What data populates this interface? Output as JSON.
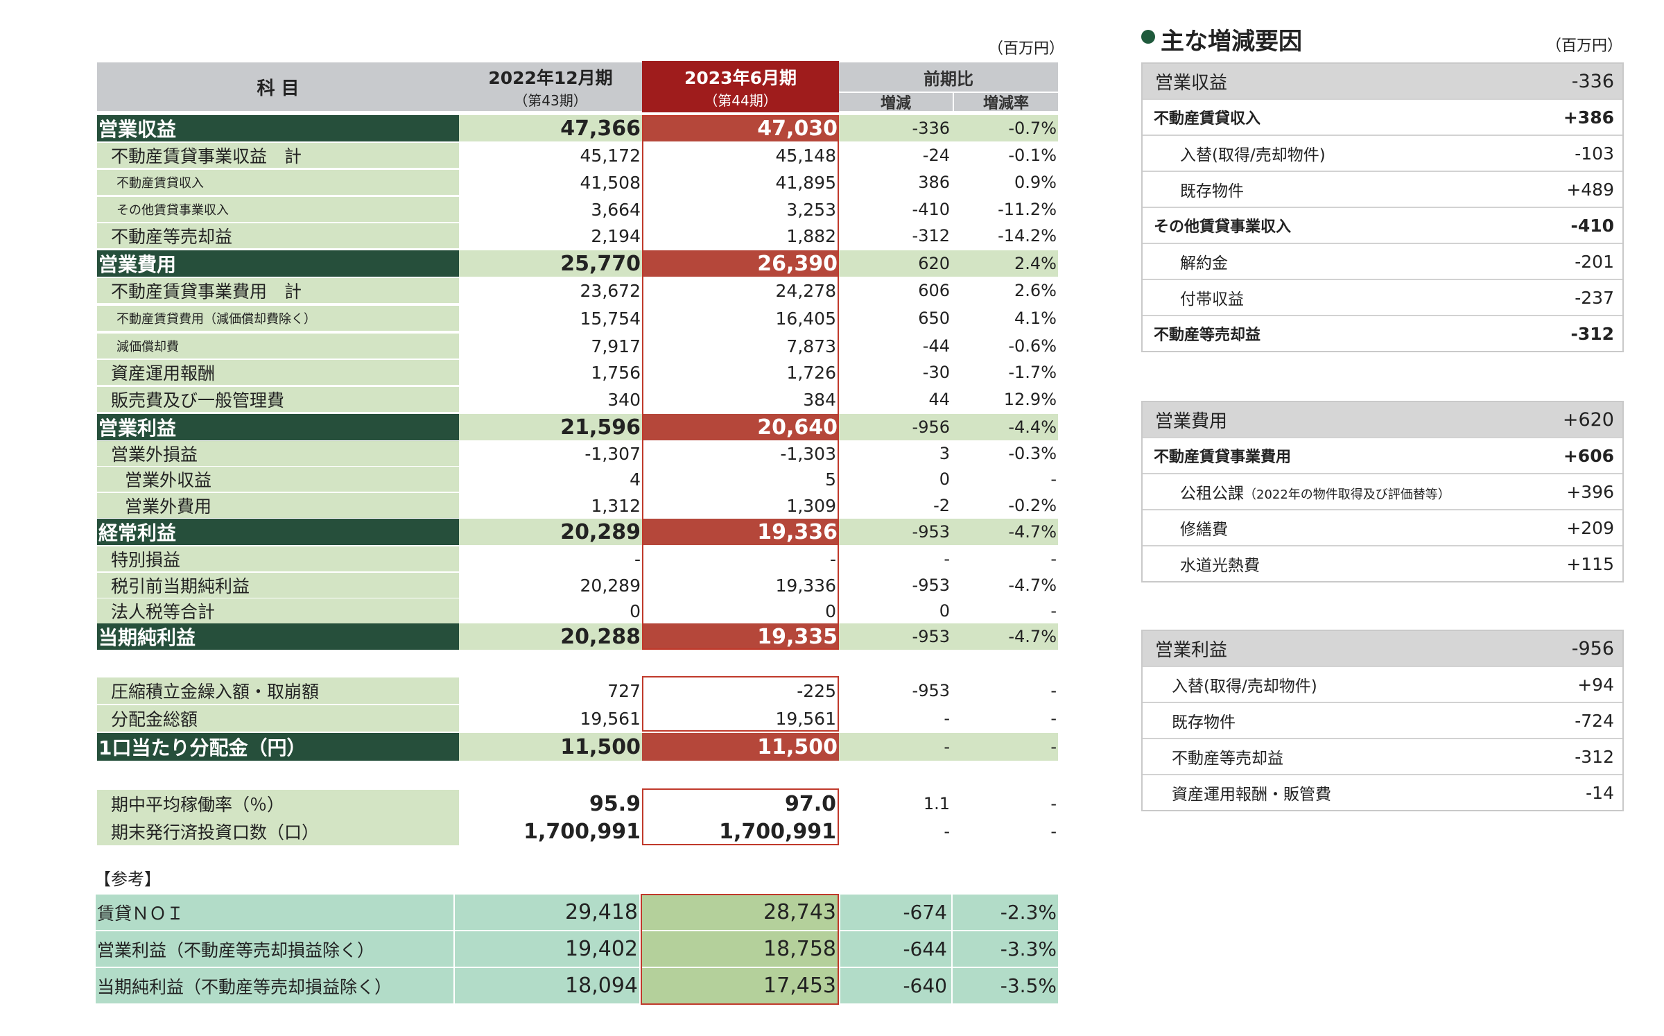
{
  "unit_label": "（百万円）",
  "header": {
    "item_label": "科 目",
    "period1_title": "2022年12月期",
    "period1_sub": "（第43期）",
    "period2_title": "2023年6月期",
    "period2_sub": "（第44期）",
    "compare_title": "前期比",
    "diff_label": "増減",
    "rate_label": "増減率"
  },
  "rows": [
    {
      "label": "営業収益",
      "p1": "47,366",
      "p2": "47,030",
      "diff": "-336",
      "rate": "-0.7%",
      "style": "major"
    },
    {
      "label": "不動産賃貸事業収益　計",
      "p1": "45,172",
      "p2": "45,148",
      "diff": "-24",
      "rate": "-0.1%",
      "style": "sub"
    },
    {
      "label": "不動産賃貸収入",
      "p1": "41,508",
      "p2": "41,895",
      "diff": "386",
      "rate": "0.9%",
      "style": "small"
    },
    {
      "label": "その他賃貸事業収入",
      "p1": "3,664",
      "p2": "3,253",
      "diff": "-410",
      "rate": "-11.2%",
      "style": "small"
    },
    {
      "label": "不動産等売却益",
      "p1": "2,194",
      "p2": "1,882",
      "diff": "-312",
      "rate": "-14.2%",
      "style": "sub"
    },
    {
      "label": "営業費用",
      "p1": "25,770",
      "p2": "26,390",
      "diff": "620",
      "rate": "2.4%",
      "style": "major"
    },
    {
      "label": "不動産賃貸事業費用　計",
      "p1": "23,672",
      "p2": "24,278",
      "diff": "606",
      "rate": "2.6%",
      "style": "sub"
    },
    {
      "label": "不動産賃貸費用（減価償却費除く）",
      "p1": "15,754",
      "p2": "16,405",
      "diff": "650",
      "rate": "4.1%",
      "style": "small"
    },
    {
      "label": "減価償却費",
      "p1": "7,917",
      "p2": "7,873",
      "diff": "-44",
      "rate": "-0.6%",
      "style": "small"
    },
    {
      "label": "資産運用報酬",
      "p1": "1,756",
      "p2": "1,726",
      "diff": "-30",
      "rate": "-1.7%",
      "style": "sub"
    },
    {
      "label": "販売費及び一般管理費",
      "p1": "340",
      "p2": "384",
      "diff": "44",
      "rate": "12.9%",
      "style": "sub"
    },
    {
      "label": "営業利益",
      "p1": "21,596",
      "p2": "20,640",
      "diff": "-956",
      "rate": "-4.4%",
      "style": "major"
    },
    {
      "label": "営業外損益",
      "p1": "-1,307",
      "p2": "-1,303",
      "diff": "3",
      "rate": "-0.3%",
      "style": "sub"
    },
    {
      "label": "営業外収益",
      "p1": "4",
      "p2": "5",
      "diff": "0",
      "rate": "-",
      "style": "sub2"
    },
    {
      "label": "営業外費用",
      "p1": "1,312",
      "p2": "1,309",
      "diff": "-2",
      "rate": "-0.2%",
      "style": "sub2"
    },
    {
      "label": "経常利益",
      "p1": "20,289",
      "p2": "19,336",
      "diff": "-953",
      "rate": "-4.7%",
      "style": "major"
    },
    {
      "label": "特別損益",
      "p1": "-",
      "p2": "-",
      "diff": "-",
      "rate": "-",
      "style": "sub"
    },
    {
      "label": "税引前当期純利益",
      "p1": "20,289",
      "p2": "19,336",
      "diff": "-953",
      "rate": "-4.7%",
      "style": "sub"
    },
    {
      "label": "法人税等合計",
      "p1": "0",
      "p2": "0",
      "diff": "0",
      "rate": "-",
      "style": "sub"
    },
    {
      "label": "当期純利益",
      "p1": "20,288",
      "p2": "19,335",
      "diff": "-953",
      "rate": "-4.7%",
      "style": "major"
    }
  ],
  "dist_rows": [
    {
      "label": "圧縮積立金繰入額・取崩額",
      "p1": "727",
      "p2": "-225",
      "diff": "-953",
      "rate": "-",
      "style": "sub"
    },
    {
      "label": "分配金総額",
      "p1": "19,561",
      "p2": "19,561",
      "diff": "-",
      "rate": "-",
      "style": "sub"
    },
    {
      "label": "1口当たり分配金（円）",
      "p1": "11,500",
      "p2": "11,500",
      "diff": "-",
      "rate": "-",
      "style": "major"
    }
  ],
  "occ_rows": [
    {
      "label": "期中平均稼働率（％）",
      "p1": "95.9",
      "p2": "97.0",
      "diff": "1.1",
      "rate": "-"
    },
    {
      "label": "期末発行済投資口数（口）",
      "p1": "1,700,991",
      "p2": "1,700,991",
      "diff": "-",
      "rate": "-"
    }
  ],
  "reference_label": "【参考】",
  "ref_rows": [
    {
      "label": "賃貸ＮＯＩ",
      "p1": "29,418",
      "p2": "28,743",
      "diff": "-674",
      "rate": "-2.3%"
    },
    {
      "label": "営業利益（不動産等売却損益除く）",
      "p1": "19,402",
      "p2": "18,758",
      "diff": "-644",
      "rate": "-3.3%"
    },
    {
      "label": "当期純利益（不動産等売却損益除く）",
      "p1": "18,094",
      "p2": "17,453",
      "diff": "-640",
      "rate": "-3.5%"
    }
  ],
  "side": {
    "title": "主な増減要因",
    "unit_label": "（百万円）",
    "bullet_color": "#1f5a3c",
    "boxes": [
      {
        "head_label": "営業収益",
        "head_value": "-336",
        "items": [
          {
            "label": "不動産賃貸収入",
            "value": "+386",
            "bold": true,
            "indent": 0
          },
          {
            "label": "入替(取得/売却物件)",
            "value": "-103",
            "bold": false,
            "indent": 2
          },
          {
            "label": "既存物件",
            "value": "+489",
            "bold": false,
            "indent": 2
          },
          {
            "label": "その他賃貸事業収入",
            "value": "-410",
            "bold": true,
            "indent": 0
          },
          {
            "label": "解約金",
            "value": "-201",
            "bold": false,
            "indent": 2
          },
          {
            "label": "付帯収益",
            "value": "-237",
            "bold": false,
            "indent": 2
          },
          {
            "label": "不動産等売却益",
            "value": "-312",
            "bold": true,
            "indent": 0
          }
        ]
      },
      {
        "head_label": "営業費用",
        "head_value": "+620",
        "items": [
          {
            "label": "不動産賃貸事業費用",
            "value": "+606",
            "bold": true,
            "indent": 0
          },
          {
            "label": "公租公課",
            "note": "（2022年の物件取得及び評価替等）",
            "value": "+396",
            "bold": false,
            "indent": 2
          },
          {
            "label": "修繕費",
            "value": "+209",
            "bold": false,
            "indent": 2
          },
          {
            "label": "水道光熱費",
            "value": "+115",
            "bold": false,
            "indent": 2
          }
        ]
      },
      {
        "head_label": "営業利益",
        "head_value": "-956",
        "items": [
          {
            "label": "入替(取得/売却物件)",
            "value": "+94",
            "bold": false,
            "indent": 1
          },
          {
            "label": "既存物件",
            "value": "-724",
            "bold": false,
            "indent": 1
          },
          {
            "label": "不動産等売却益",
            "value": "-312",
            "bold": false,
            "indent": 1
          },
          {
            "label": "資産運用報酬・販管費",
            "value": "-14",
            "bold": false,
            "indent": 1
          }
        ]
      }
    ]
  },
  "colors": {
    "dark_green": "#264f3b",
    "light_green": "#d3e4c4",
    "accent_red": "#b5473a",
    "header_red": "#9f1c1c",
    "teal": "#b2dcc8"
  }
}
